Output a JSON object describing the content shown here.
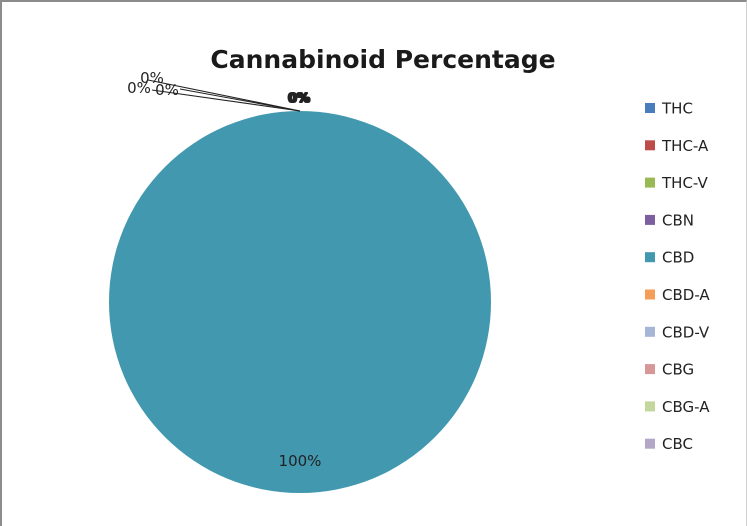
{
  "chart_data": {
    "type": "pie",
    "title": "Cannabinoid Percentage",
    "legend_position": "right",
    "categories": [
      "THC",
      "THC-A",
      "THC-V",
      "CBN",
      "CBD",
      "CBD-A",
      "CBD-V",
      "CBG",
      "CBG-A",
      "CBC"
    ],
    "values": [
      0,
      0,
      0,
      0,
      100,
      0,
      0,
      0,
      0,
      0
    ],
    "colors": [
      "#4a7ebb",
      "#be4b48",
      "#98b954",
      "#7d5fa0",
      "#4198af",
      "#f59d56",
      "#a5b6d6",
      "#d89797",
      "#c3d69b",
      "#b3a7c7"
    ],
    "data_labels": [
      "0%",
      "0%",
      "0%",
      "0%",
      "100%",
      "0%",
      "0%",
      "0%",
      "0%",
      "0%"
    ]
  }
}
